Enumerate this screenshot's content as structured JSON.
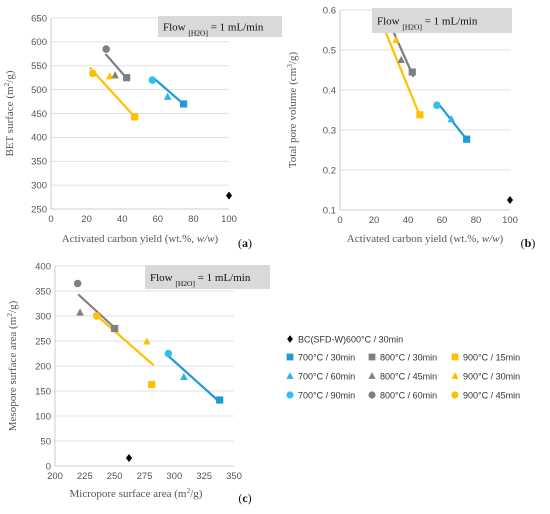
{
  "legend": {
    "items": [
      {
        "key": "bc",
        "label": "BC(SFD-W)600°C / 30min",
        "color": "#000000",
        "marker": "diamond"
      },
      {
        "key": "700_30",
        "label": "700°C / 30min",
        "color": "#1f9ad6",
        "marker": "square"
      },
      {
        "key": "800_30",
        "label": "800°C / 30min",
        "color": "#7f7f7f",
        "marker": "square"
      },
      {
        "key": "900_15",
        "label": "900°C / 15min",
        "color": "#ffc000",
        "marker": "square"
      },
      {
        "key": "700_60",
        "label": "700°C / 60min",
        "color": "#2eb3e8",
        "marker": "triangle"
      },
      {
        "key": "800_45",
        "label": "800°C / 45min",
        "color": "#808080",
        "marker": "triangle"
      },
      {
        "key": "900_30",
        "label": "900°C / 30min",
        "color": "#ffc000",
        "marker": "triangle"
      },
      {
        "key": "700_90",
        "label": "700°C / 90min",
        "color": "#2ec0ee",
        "marker": "circle"
      },
      {
        "key": "800_60",
        "label": "800°C / 60min",
        "color": "#7f7f7f",
        "marker": "circle"
      },
      {
        "key": "900_45",
        "label": "900°C / 45min",
        "color": "#ffc000",
        "marker": "circle"
      }
    ]
  },
  "chart_data": [
    {
      "type": "scatter",
      "panel_label": "(a)",
      "annotation": {
        "prefix": "Flow ",
        "sub": "[H2O]",
        "suffix": " = 1 mL/min"
      },
      "xlabel": {
        "main": "Activated carbon yield (wt.%, ",
        "ital": "w/w",
        "end": ")"
      },
      "ylabel": {
        "main": "BET surface (m",
        "sup": "2",
        "end": "/g)"
      },
      "xlim": [
        0,
        100
      ],
      "ylim": [
        250,
        650
      ],
      "xticks": [
        "0",
        "20",
        "40",
        "60",
        "80",
        "100"
      ],
      "yticks": [
        "250",
        "300",
        "350",
        "400",
        "450",
        "500",
        "550",
        "600",
        "650"
      ],
      "points": [
        {
          "key": "bc",
          "x": 100,
          "y": 278
        },
        {
          "key": "700_30",
          "x": 74.5,
          "y": 470
        },
        {
          "key": "700_60",
          "x": 65.5,
          "y": 485
        },
        {
          "key": "700_90",
          "x": 57,
          "y": 520
        },
        {
          "key": "800_30",
          "x": 42.5,
          "y": 525
        },
        {
          "key": "800_45",
          "x": 36,
          "y": 530
        },
        {
          "key": "800_60",
          "x": 31,
          "y": 585
        },
        {
          "key": "900_15",
          "x": 47,
          "y": 443
        },
        {
          "key": "900_30",
          "x": 33,
          "y": 528
        },
        {
          "key": "900_45",
          "x": 23.5,
          "y": 534
        }
      ],
      "trendlines": [
        {
          "color": "#1f9ad6",
          "x": [
            58,
            75
          ],
          "y": [
            523,
            468
          ]
        },
        {
          "color": "#7f7f7f",
          "x": [
            31,
            43
          ],
          "y": [
            573,
            522
          ]
        },
        {
          "color": "#ffc000",
          "x": [
            22,
            47
          ],
          "y": [
            545,
            443
          ]
        }
      ]
    },
    {
      "type": "scatter",
      "panel_label": "(b)",
      "annotation": {
        "prefix": "Flow ",
        "sub": "[H2O]",
        "suffix": " = 1 mL/min"
      },
      "xlabel": {
        "main": "Activated carbon yield (wt.%, ",
        "ital": "w/w",
        "end": ")"
      },
      "ylabel": {
        "main": "Total pore volume (cm",
        "sup": "3",
        "end": "/g)"
      },
      "xlim": [
        0,
        100
      ],
      "ylim": [
        0.1,
        0.6
      ],
      "xticks": [
        "0",
        "20",
        "40",
        "60",
        "80",
        "100"
      ],
      "yticks": [
        "0.1",
        "0.2",
        "0.3",
        "0.4",
        "0.5",
        "0.6"
      ],
      "points": [
        {
          "key": "bc",
          "x": 100,
          "y": 0.125
        },
        {
          "key": "700_30",
          "x": 74.5,
          "y": 0.277
        },
        {
          "key": "700_60",
          "x": 65.5,
          "y": 0.327
        },
        {
          "key": "700_90",
          "x": 57,
          "y": 0.362
        },
        {
          "key": "800_30",
          "x": 42.5,
          "y": 0.445
        },
        {
          "key": "800_45",
          "x": 36,
          "y": 0.475
        },
        {
          "key": "800_60",
          "x": 31,
          "y": 0.568
        },
        {
          "key": "900_15",
          "x": 47,
          "y": 0.338
        },
        {
          "key": "900_30",
          "x": 33,
          "y": 0.525
        },
        {
          "key": "900_45",
          "x": 23.5,
          "y": 0.563
        }
      ],
      "trendlines": [
        {
          "color": "#1f9ad6",
          "x": [
            58,
            75
          ],
          "y": [
            0.365,
            0.274
          ]
        },
        {
          "color": "#7f7f7f",
          "x": [
            31,
            43
          ],
          "y": [
            0.55,
            0.435
          ]
        },
        {
          "color": "#ffc000",
          "x": [
            23,
            47
          ],
          "y": [
            0.585,
            0.335
          ]
        }
      ]
    },
    {
      "type": "scatter",
      "panel_label": "(c)",
      "annotation": {
        "prefix": "Flow ",
        "sub": "[H2O]",
        "suffix": " = 1 mL/min"
      },
      "xlabel": {
        "main": "Micropore surface area (m",
        "sup": "2",
        "end": "/g)"
      },
      "ylabel": {
        "main": "Mesopore surface area (m",
        "sup": "2",
        "end": "/g)"
      },
      "xlim": [
        200,
        350
      ],
      "ylim": [
        0,
        400
      ],
      "xticks": [
        "200",
        "225",
        "250",
        "275",
        "300",
        "325",
        "350"
      ],
      "yticks": [
        "0",
        "50",
        "100",
        "150",
        "200",
        "250",
        "300",
        "350",
        "400"
      ],
      "points": [
        {
          "key": "bc",
          "x": 262,
          "y": 16
        },
        {
          "key": "700_30",
          "x": 338,
          "y": 132
        },
        {
          "key": "700_60",
          "x": 308,
          "y": 178
        },
        {
          "key": "700_90",
          "x": 295,
          "y": 225
        },
        {
          "key": "800_30",
          "x": 250,
          "y": 275
        },
        {
          "key": "800_45",
          "x": 221,
          "y": 307
        },
        {
          "key": "800_60",
          "x": 219,
          "y": 365
        },
        {
          "key": "900_15",
          "x": 281,
          "y": 163
        },
        {
          "key": "900_30",
          "x": 277,
          "y": 249
        },
        {
          "key": "900_45",
          "x": 235,
          "y": 300
        }
      ],
      "trendlines": [
        {
          "color": "#1f9ad6",
          "x": [
            295,
            338
          ],
          "y": [
            220,
            128
          ]
        },
        {
          "color": "#7f7f7f",
          "x": [
            220,
            252
          ],
          "y": [
            342,
            272
          ]
        },
        {
          "color": "#ffc000",
          "x": [
            233,
            282
          ],
          "y": [
            305,
            203
          ]
        }
      ]
    }
  ]
}
